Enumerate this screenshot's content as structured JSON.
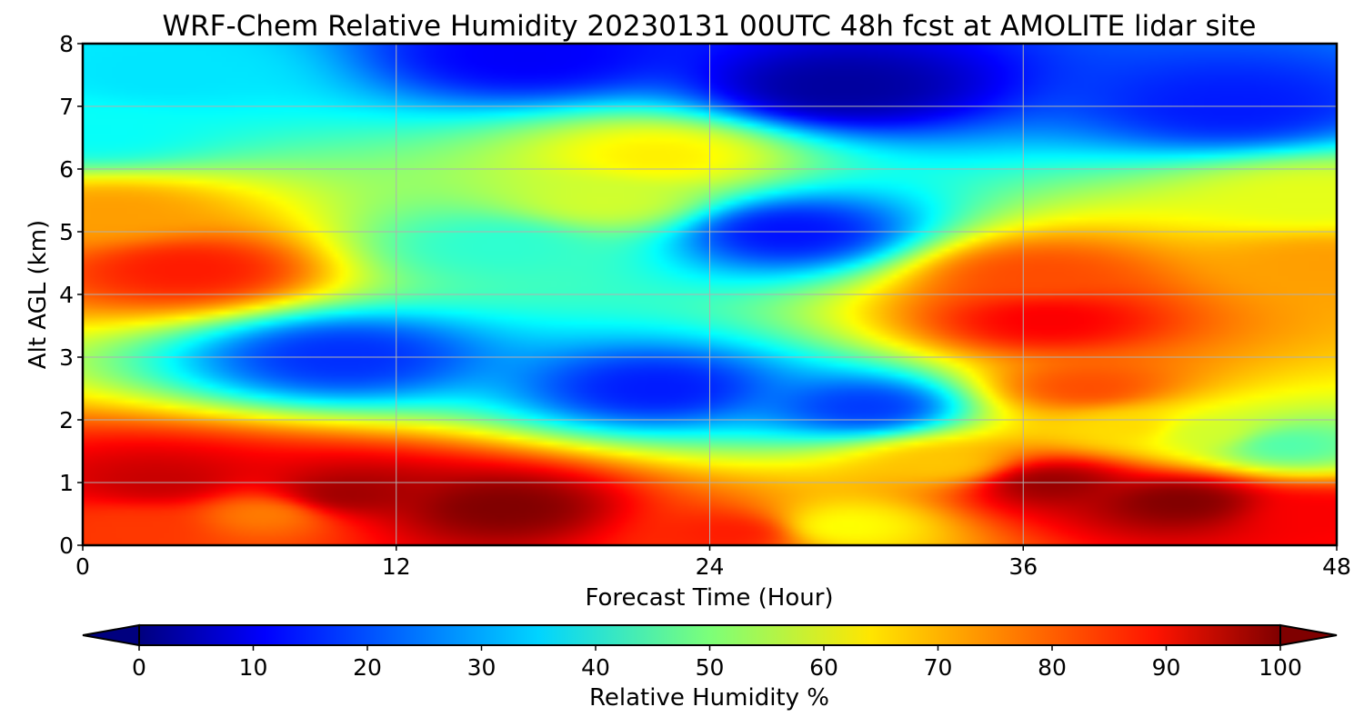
{
  "chart_data": {
    "type": "heatmap",
    "title": "WRF-Chem Relative Humidity 20230131 00UTC 48h fcst at AMOLITE lidar site",
    "xlabel": "Forecast Time (Hour)",
    "ylabel": "Alt AGL (km)",
    "xlim": [
      0,
      48
    ],
    "ylim": [
      0,
      8
    ],
    "x_ticks": [
      0,
      12,
      24,
      36,
      48
    ],
    "y_ticks": [
      0,
      1,
      2,
      3,
      4,
      5,
      6,
      7,
      8
    ],
    "grid": true,
    "colormap": "jet",
    "colorbar": {
      "label": "Relative Humidity %",
      "range": [
        0,
        100
      ],
      "ticks": [
        0,
        10,
        20,
        30,
        40,
        50,
        60,
        70,
        80,
        90,
        100
      ],
      "extend": "both",
      "orientation": "horizontal",
      "placement": "bottom"
    },
    "features": [
      {
        "x": 4,
        "y": 4.4,
        "rh": 85
      },
      {
        "x": 1,
        "y": 5.3,
        "rh": 72
      },
      {
        "x": 0.5,
        "y": 6.6,
        "rh": 38
      },
      {
        "x": 3,
        "y": 7.5,
        "rh": 35
      },
      {
        "x": 20,
        "y": 5.5,
        "rh": 58
      },
      {
        "x": 22,
        "y": 6.2,
        "rh": 64
      },
      {
        "x": 16,
        "y": 4.8,
        "rh": 42
      },
      {
        "x": 17,
        "y": 7.8,
        "rh": 12
      },
      {
        "x": 29,
        "y": 7.3,
        "rh": 3
      },
      {
        "x": 27,
        "y": 5.0,
        "rh": 14
      },
      {
        "x": 37,
        "y": 3.6,
        "rh": 88
      },
      {
        "x": 36.5,
        "y": 4.3,
        "rh": 80
      },
      {
        "x": 38.5,
        "y": 2.5,
        "rh": 80
      },
      {
        "x": 40,
        "y": 1.9,
        "rh": 66
      },
      {
        "x": 43,
        "y": 1.8,
        "rh": 58
      },
      {
        "x": 47.5,
        "y": 4.5,
        "rh": 72
      },
      {
        "x": 47,
        "y": 5.5,
        "rh": 60
      },
      {
        "x": 44,
        "y": 7.0,
        "rh": 15
      },
      {
        "x": 10,
        "y": 3.0,
        "rh": 17
      },
      {
        "x": 22,
        "y": 2.5,
        "rh": 15
      },
      {
        "x": 30,
        "y": 2.2,
        "rh": 18
      },
      {
        "x": 46,
        "y": 1.6,
        "rh": 45
      },
      {
        "x": 16,
        "y": 0.6,
        "rh": 100
      },
      {
        "x": 10,
        "y": 0.8,
        "rh": 97
      },
      {
        "x": 42,
        "y": 0.7,
        "rh": 100
      },
      {
        "x": 37,
        "y": 1.0,
        "rh": 98
      },
      {
        "x": 3,
        "y": 1.0,
        "rh": 93
      },
      {
        "x": 2,
        "y": 0.3,
        "rh": 82
      },
      {
        "x": 29,
        "y": 0.3,
        "rh": 62
      },
      {
        "x": 7,
        "y": 0.5,
        "rh": 75
      },
      {
        "x": 25,
        "y": 0.2,
        "rh": 85
      },
      {
        "x": 33,
        "y": 1.3,
        "rh": 68
      },
      {
        "x": 47.5,
        "y": 0.5,
        "rh": 88
      }
    ]
  }
}
